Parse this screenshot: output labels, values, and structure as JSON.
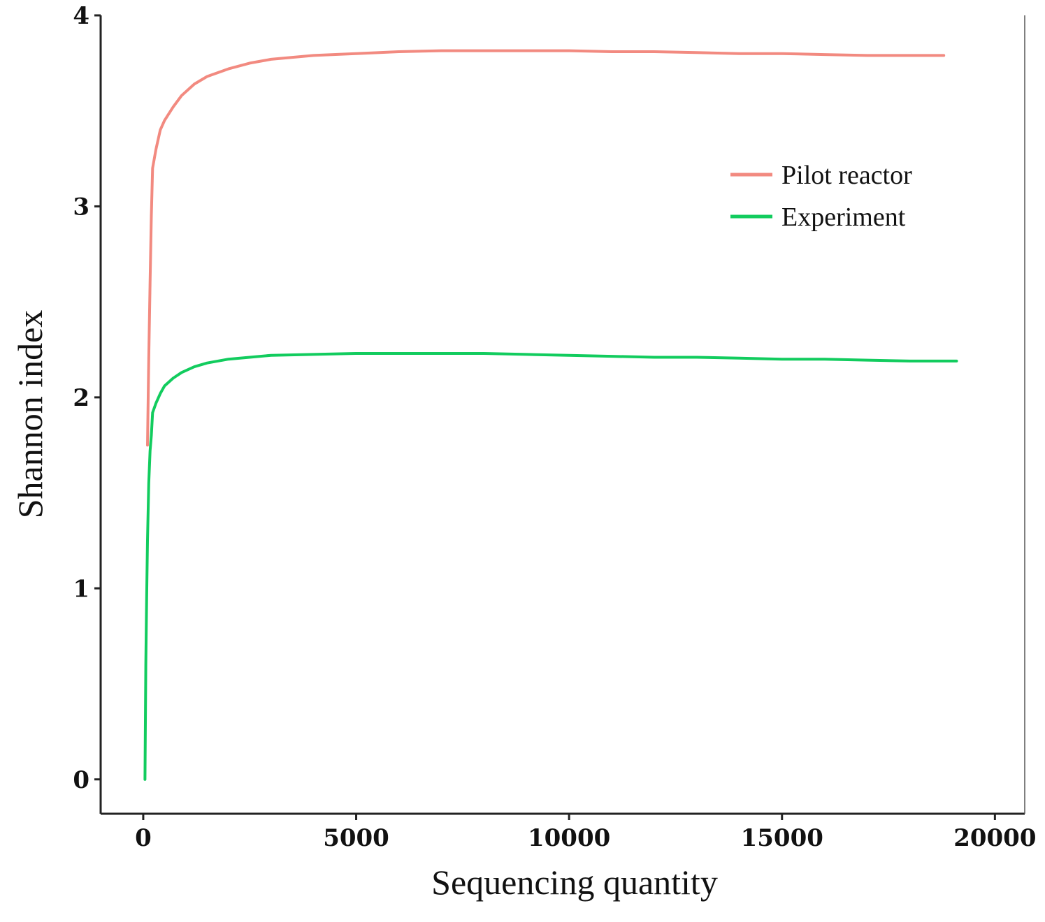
{
  "chart_data": {
    "type": "line",
    "title": "",
    "xlabel": "Sequencing quantity",
    "ylabel": "Shannon index",
    "xlim": [
      -1000,
      20700
    ],
    "ylim": [
      -0.18,
      4
    ],
    "xticks": [
      0,
      5000,
      10000,
      15000,
      20000
    ],
    "xtick_labels": [
      "0",
      "5000",
      "10000",
      "15000",
      "20000"
    ],
    "yticks": [
      0,
      1,
      2,
      3,
      4
    ],
    "ytick_labels": [
      "0",
      "1",
      "2",
      "3",
      "4"
    ],
    "grid": false,
    "legend_position": "top-right",
    "series": [
      {
        "name": "Pilot reactor",
        "color": "#f28a80",
        "x": [
          100,
          130,
          160,
          190,
          220,
          300,
          400,
          500,
          700,
          900,
          1200,
          1500,
          2000,
          2500,
          3000,
          4000,
          5000,
          6000,
          7000,
          8000,
          9000,
          10000,
          11000,
          12000,
          13000,
          14000,
          15000,
          16000,
          17000,
          18000,
          18800
        ],
        "y": [
          1.75,
          2.2,
          2.6,
          2.95,
          3.2,
          3.3,
          3.4,
          3.45,
          3.52,
          3.58,
          3.64,
          3.68,
          3.72,
          3.75,
          3.77,
          3.79,
          3.8,
          3.81,
          3.815,
          3.815,
          3.815,
          3.815,
          3.81,
          3.81,
          3.805,
          3.8,
          3.8,
          3.795,
          3.79,
          3.79,
          3.79
        ]
      },
      {
        "name": "Experiment",
        "color": "#12cc5e",
        "x": [
          40,
          50,
          60,
          80,
          100,
          130,
          160,
          190,
          220,
          300,
          400,
          500,
          700,
          900,
          1200,
          1500,
          2000,
          2500,
          3000,
          4000,
          5000,
          6000,
          7000,
          8000,
          9000,
          10000,
          11000,
          12000,
          13000,
          14000,
          15000,
          16000,
          17000,
          18000,
          19100
        ],
        "y": [
          0.0,
          0.3,
          0.6,
          0.95,
          1.25,
          1.55,
          1.72,
          1.8,
          1.92,
          1.97,
          2.02,
          2.06,
          2.1,
          2.13,
          2.16,
          2.18,
          2.2,
          2.21,
          2.22,
          2.225,
          2.23,
          2.23,
          2.23,
          2.23,
          2.225,
          2.22,
          2.215,
          2.21,
          2.21,
          2.205,
          2.2,
          2.2,
          2.195,
          2.19,
          2.19
        ]
      }
    ]
  }
}
